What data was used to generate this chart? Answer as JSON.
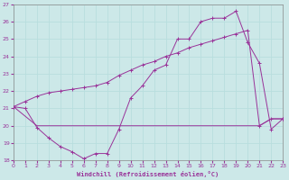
{
  "xlabel": "Windchill (Refroidissement éolien,°C)",
  "bg_color": "#cce8e8",
  "grid_color": "#aadddd",
  "line_color": "#993399",
  "xlim": [
    0,
    23
  ],
  "ylim": [
    18,
    27
  ],
  "xticks": [
    0,
    1,
    2,
    3,
    4,
    5,
    6,
    7,
    8,
    9,
    10,
    11,
    12,
    13,
    14,
    15,
    16,
    17,
    18,
    19,
    20,
    21,
    22,
    23
  ],
  "yticks": [
    18,
    19,
    20,
    21,
    22,
    23,
    24,
    25,
    26,
    27
  ],
  "s1_x": [
    0,
    1,
    2,
    3,
    4,
    5,
    6,
    7,
    8,
    9,
    10,
    11,
    12,
    13,
    14,
    15,
    16,
    17,
    18,
    19,
    20,
    21,
    22,
    23
  ],
  "s1_y": [
    21.1,
    21.4,
    21.7,
    21.9,
    22.0,
    22.1,
    22.2,
    22.3,
    22.5,
    22.9,
    23.2,
    23.5,
    23.7,
    24.0,
    24.2,
    24.5,
    24.7,
    24.9,
    25.1,
    25.3,
    25.5,
    20.0,
    20.4,
    20.4
  ],
  "s2_x": [
    0,
    1,
    2,
    3,
    4,
    5,
    6,
    7,
    8,
    9,
    10,
    11,
    12,
    13,
    14,
    15,
    16,
    17,
    18,
    19,
    20,
    21,
    22,
    23
  ],
  "s2_y": [
    21.1,
    21.0,
    19.9,
    19.3,
    18.8,
    18.5,
    18.1,
    18.4,
    18.4,
    19.8,
    21.6,
    22.3,
    23.2,
    23.5,
    25.0,
    25.0,
    26.0,
    26.2,
    26.2,
    26.6,
    24.8,
    23.6,
    19.8,
    20.4
  ],
  "s3_x": [
    0,
    2,
    3,
    4,
    5,
    6,
    7,
    8,
    9,
    10,
    11,
    12,
    13,
    14,
    15,
    16,
    17,
    18,
    19,
    20,
    21,
    22,
    23
  ],
  "s3_y": [
    21.1,
    20.0,
    20.0,
    20.0,
    20.0,
    20.0,
    20.0,
    20.0,
    20.0,
    20.0,
    20.0,
    20.0,
    20.0,
    20.0,
    20.0,
    20.0,
    20.0,
    20.0,
    20.0,
    20.0,
    20.0,
    20.4,
    20.4
  ]
}
